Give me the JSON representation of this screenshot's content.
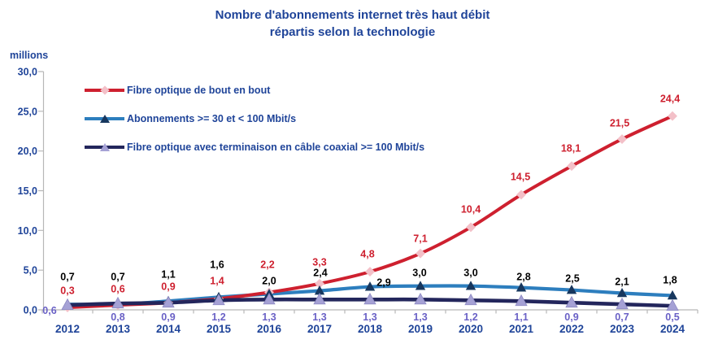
{
  "title": {
    "line1": "Nombre d'abonnements internet très haut débit",
    "line2": "répartis selon la technologie"
  },
  "y_axis": {
    "unit_label": "millions",
    "tick_labels": [
      "30,0",
      "25,0",
      "20,0",
      "15,0",
      "10,0",
      "5,0",
      "0,0"
    ],
    "min": 0,
    "max": 30,
    "step": 5
  },
  "x_axis": {
    "categories": [
      "2012",
      "2013",
      "2014",
      "2015",
      "2016",
      "2017",
      "2018",
      "2019",
      "2020",
      "2021",
      "2022",
      "2023",
      "2024"
    ]
  },
  "legend": [
    {
      "label": "Fibre optique de bout en bout",
      "line_color": "#CE202F",
      "marker": "diamond",
      "marker_color": "#F3C0C8"
    },
    {
      "label": "Abonnements >= 30 et < 100 Mbit/s",
      "line_color": "#2D7EBE",
      "marker": "triangle",
      "marker_color": "#17375E"
    },
    {
      "label": "Fibre optique avec terminaison en câble coaxial >= 100 Mbit/s",
      "line_color": "#23265C",
      "marker": "triangle",
      "marker_color": "#A5A1D5"
    }
  ],
  "chart_data": {
    "type": "line",
    "title": "Nombre d'abonnements internet très haut débit répartis selon la technologie",
    "ylabel": "millions",
    "ylim": [
      0,
      30
    ],
    "grid": false,
    "legend_position": "top-left",
    "categories": [
      "2012",
      "2013",
      "2014",
      "2015",
      "2016",
      "2017",
      "2018",
      "2019",
      "2020",
      "2021",
      "2022",
      "2023",
      "2024"
    ],
    "series": [
      {
        "name": "Fibre optique de bout en bout",
        "values": [
          0.3,
          0.6,
          0.9,
          1.4,
          2.2,
          3.3,
          4.8,
          7.1,
          10.4,
          14.5,
          18.1,
          21.5,
          24.4
        ],
        "labels": [
          "0,3",
          "0,6",
          "0,9",
          "1,4",
          "2,2",
          "3,3",
          "4,8",
          "7,1",
          "10,4",
          "14,5",
          "18,1",
          "21,5",
          "24,4"
        ],
        "line_color": "#CE202F",
        "marker": "diamond",
        "marker_color": "#F3C0C8",
        "label_color": "#CE202F"
      },
      {
        "name": "Abonnements >= 30 et < 100 Mbit/s",
        "values": [
          0.7,
          0.7,
          1.1,
          1.6,
          2.0,
          2.4,
          2.9,
          3.0,
          3.0,
          2.8,
          2.5,
          2.1,
          1.8
        ],
        "labels": [
          "0,7",
          "0,7",
          "1,1",
          "1,6",
          "2,0",
          "2,4",
          "2,9",
          "3,0",
          "3,0",
          "2,8",
          "2,5",
          "2,1",
          "1,8"
        ],
        "line_color": "#2D7EBE",
        "marker": "triangle",
        "marker_color": "#17375E",
        "label_color": "#000000"
      },
      {
        "name": "Fibre optique avec terminaison en câble coaxial >= 100 Mbit/s",
        "values": [
          0.6,
          0.8,
          0.9,
          1.2,
          1.3,
          1.3,
          1.3,
          1.3,
          1.2,
          1.1,
          0.9,
          0.7,
          0.5
        ],
        "labels": [
          "0,6",
          "0,8",
          "0,9",
          "1,2",
          "1,3",
          "1,3",
          "1,3",
          "1,3",
          "1,2",
          "1,1",
          "0,9",
          "0,7",
          "0,5"
        ],
        "line_color": "#23265C",
        "marker": "triangle",
        "marker_color": "#A5A1D5",
        "label_color": "#6A61C6"
      }
    ]
  },
  "colors": {
    "text_blue": "#1F4499",
    "axis_gray": "#B7B7B7",
    "black_label": "#000000",
    "purple_label": "#6A61C6"
  }
}
